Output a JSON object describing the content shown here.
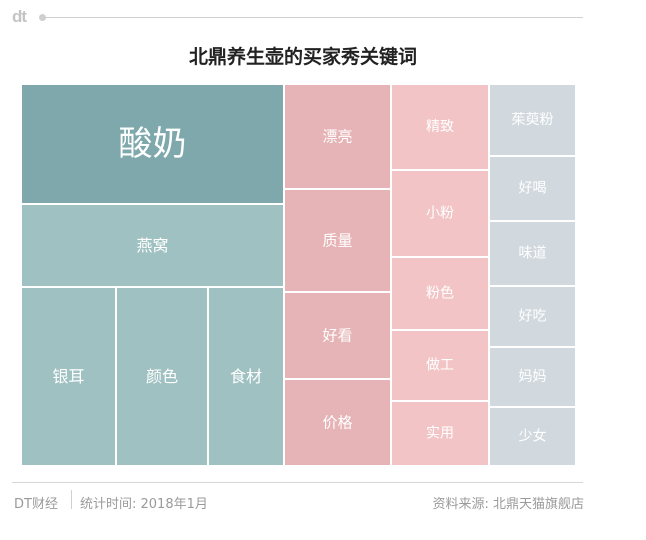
{
  "header": {
    "logo": "dt"
  },
  "footer": {
    "brand": "DT财经",
    "time": "统计时间: 2018年1月",
    "source": "资料来源: 北鼎天猫旗舰店"
  },
  "colors": {
    "teal_dark": "#7ea8ab",
    "teal_light": "#9fc1c1",
    "pink_dark": "#e6b4b6",
    "pink_light": "#f2c4c5",
    "gray": "#d2d9de"
  },
  "chart_data": {
    "type": "treemap",
    "title": "北鼎养生壶的买家秀关键词",
    "items": [
      "酸奶",
      "燕窝",
      "银耳",
      "颜色",
      "食材",
      "漂亮",
      "质量",
      "好看",
      "价格",
      "精致",
      "小粉",
      "粉色",
      "做工",
      "实用",
      "茱萸粉",
      "好喝",
      "味道",
      "好吃",
      "妈妈",
      "少女"
    ]
  }
}
